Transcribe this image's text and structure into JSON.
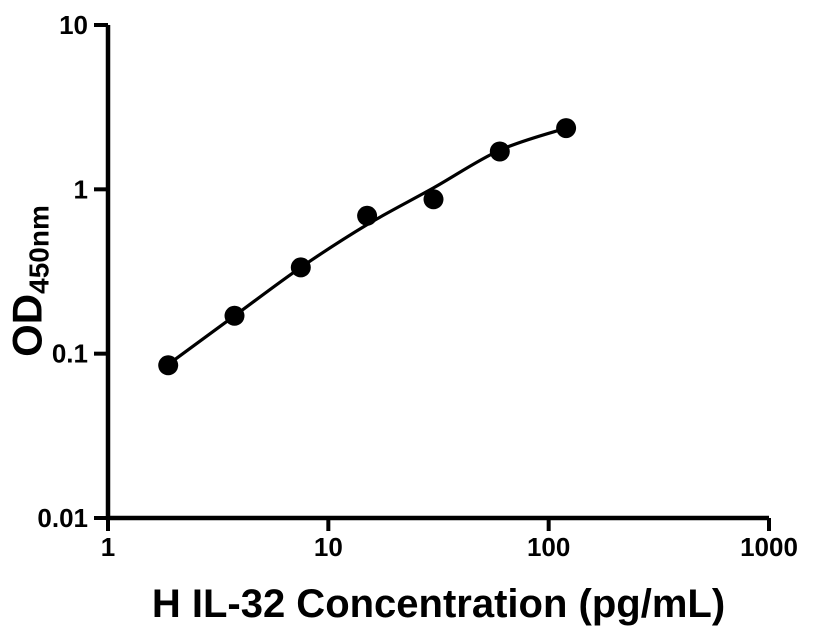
{
  "figure": {
    "background": "#ffffff",
    "ink_color": "#000000"
  },
  "chart_data": {
    "type": "scatter",
    "title": "",
    "xlabel": "H IL-32 Concentration (pg/mL)",
    "ylabel": "OD450nm",
    "ylabel_main": "OD",
    "ylabel_sub": "450nm",
    "x_scale": "log10",
    "y_scale": "log10",
    "xlim": [
      1,
      1000
    ],
    "ylim": [
      0.01,
      10
    ],
    "x_ticks": [
      {
        "value": 1,
        "label": "1"
      },
      {
        "value": 10,
        "label": "10"
      },
      {
        "value": 100,
        "label": "100"
      },
      {
        "value": 1000,
        "label": "1000"
      }
    ],
    "y_ticks": [
      {
        "value": 0.01,
        "label": "0.01"
      },
      {
        "value": 0.1,
        "label": "0.1"
      },
      {
        "value": 1,
        "label": "1"
      },
      {
        "value": 10,
        "label": "10"
      }
    ],
    "grid": false,
    "legend": "none",
    "series": [
      {
        "name": "standard-data-points",
        "type": "scatter",
        "marker": "filled-circle",
        "color": "#000000",
        "x": [
          1.875,
          3.75,
          7.5,
          15,
          30,
          60,
          120
        ],
        "y": [
          0.085,
          0.17,
          0.335,
          0.69,
          0.87,
          1.7,
          2.36
        ]
      },
      {
        "name": "fitted-standard-curve",
        "type": "line",
        "color": "#000000",
        "x": [
          1.875,
          3.75,
          7.5,
          15,
          30,
          60,
          120
        ],
        "y": [
          0.086,
          0.17,
          0.335,
          0.61,
          1.02,
          1.73,
          2.36
        ]
      }
    ]
  }
}
